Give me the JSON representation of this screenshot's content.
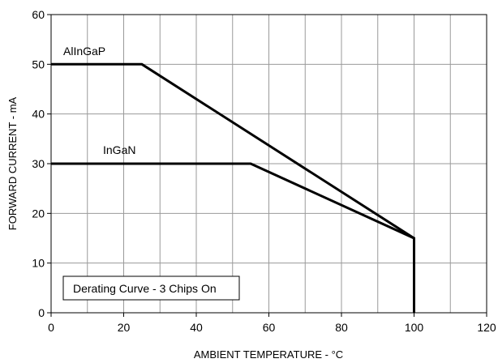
{
  "chart_data": {
    "type": "line",
    "title": "",
    "xlabel": "AMBIENT TEMPERATURE - °C",
    "ylabel": "FORWARD CURRENT - mA",
    "xlim": [
      0,
      120
    ],
    "ylim": [
      0,
      60
    ],
    "x_ticks": [
      0,
      20,
      40,
      60,
      80,
      100,
      120
    ],
    "y_ticks": [
      0,
      10,
      20,
      30,
      40,
      50,
      60
    ],
    "x_tick_labels": [
      "0",
      "20",
      "40",
      "60",
      "80",
      "100",
      "120"
    ],
    "y_tick_labels": [
      "0",
      "10",
      "20",
      "30",
      "40",
      "50",
      "60"
    ],
    "grid": true,
    "series": [
      {
        "name": "AlInGaP",
        "x": [
          0,
          25,
          100,
          100
        ],
        "y": [
          50,
          50,
          15,
          0
        ]
      },
      {
        "name": "InGaN",
        "x": [
          0,
          55,
          100,
          100
        ],
        "y": [
          30,
          30,
          15,
          0
        ]
      }
    ],
    "annotation": "Derating Curve - 3 Chips On",
    "colors": {
      "line": "#000000",
      "grid": "#9a9a9a",
      "frame": "#000000"
    }
  }
}
